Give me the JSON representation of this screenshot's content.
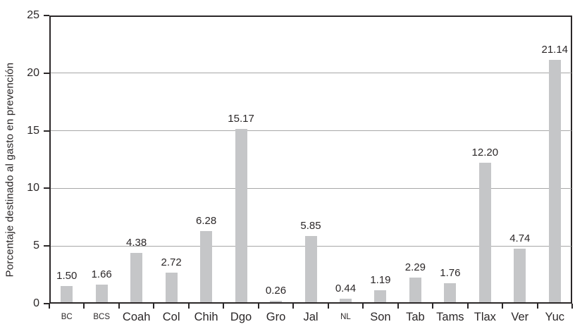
{
  "chart_data": {
    "type": "bar",
    "categories": [
      "BC",
      "BCS",
      "Coah",
      "Col",
      "Chih",
      "Dgo",
      "Gro",
      "Jal",
      "NL",
      "Son",
      "Tab",
      "Tams",
      "Tlax",
      "Ver",
      "Yuc"
    ],
    "values": [
      1.5,
      1.66,
      4.38,
      2.72,
      6.28,
      15.17,
      0.26,
      5.85,
      0.44,
      1.19,
      2.29,
      1.76,
      12.2,
      4.74,
      21.14
    ],
    "title": "",
    "xlabel": "",
    "ylabel": "Porcentaje destinado al gasto en prevención",
    "ylim": [
      0,
      25
    ],
    "yticks": [
      0,
      5,
      10,
      15,
      20,
      25
    ],
    "gridlines": [
      5,
      10,
      15,
      20
    ],
    "grid": true,
    "legend": false,
    "value_label_decimals": 2,
    "small_tick_labels": [
      "BC",
      "BCS",
      "NL"
    ],
    "colors": {
      "bar": "#c5c6c8",
      "grid": "#a7a7a7",
      "axis": "#2b2728",
      "text": "#2b2728",
      "background": "#ffffff"
    }
  }
}
